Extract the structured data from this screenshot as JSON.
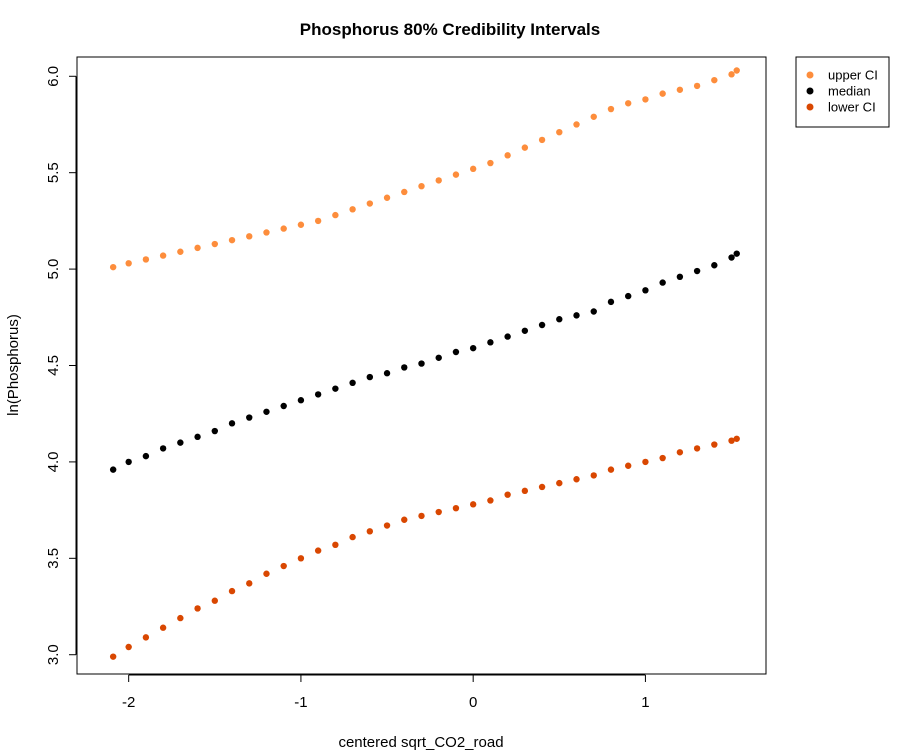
{
  "chart_data": {
    "type": "scatter",
    "title": "Phosphorus 80% Credibility Intervals",
    "xlabel": "centered sqrt_CO2_road",
    "ylabel": "ln(Phosphorus)",
    "xlim": [
      -2.3,
      1.7
    ],
    "ylim": [
      2.9,
      6.1
    ],
    "x_ticks": [
      -2,
      -1,
      0,
      1
    ],
    "y_ticks": [
      3.0,
      3.5,
      4.0,
      4.5,
      5.0,
      5.5,
      6.0
    ],
    "x_tick_labels": [
      "-2",
      "-1",
      "0",
      "1"
    ],
    "y_tick_labels": [
      "3.0",
      "3.5",
      "4.0",
      "4.5",
      "5.0",
      "5.5",
      "6.0"
    ],
    "grid": false,
    "legend_position": "top-right",
    "series": [
      {
        "name": "upper CI",
        "color": "#fd8d3c",
        "x": [
          -2.09,
          -2.0,
          -1.9,
          -1.8,
          -1.7,
          -1.6,
          -1.5,
          -1.4,
          -1.3,
          -1.2,
          -1.1,
          -1.0,
          -0.9,
          -0.8,
          -0.7,
          -0.6,
          -0.5,
          -0.4,
          -0.3,
          -0.2,
          -0.1,
          0.0,
          0.1,
          0.2,
          0.3,
          0.4,
          0.5,
          0.6,
          0.7,
          0.8,
          0.9,
          1.0,
          1.1,
          1.2,
          1.3,
          1.4,
          1.5,
          1.53
        ],
        "y": [
          5.01,
          5.03,
          5.05,
          5.07,
          5.09,
          5.11,
          5.13,
          5.15,
          5.17,
          5.19,
          5.21,
          5.23,
          5.25,
          5.28,
          5.31,
          5.34,
          5.37,
          5.4,
          5.43,
          5.46,
          5.49,
          5.52,
          5.55,
          5.59,
          5.63,
          5.67,
          5.71,
          5.75,
          5.79,
          5.83,
          5.86,
          5.88,
          5.91,
          5.93,
          5.95,
          5.98,
          6.01,
          6.03
        ]
      },
      {
        "name": "median",
        "color": "#000000",
        "x": [
          -2.09,
          -2.0,
          -1.9,
          -1.8,
          -1.7,
          -1.6,
          -1.5,
          -1.4,
          -1.3,
          -1.2,
          -1.1,
          -1.0,
          -0.9,
          -0.8,
          -0.7,
          -0.6,
          -0.5,
          -0.4,
          -0.3,
          -0.2,
          -0.1,
          0.0,
          0.1,
          0.2,
          0.3,
          0.4,
          0.5,
          0.6,
          0.7,
          0.8,
          0.9,
          1.0,
          1.1,
          1.2,
          1.3,
          1.4,
          1.5,
          1.53
        ],
        "y": [
          3.96,
          4.0,
          4.03,
          4.07,
          4.1,
          4.13,
          4.16,
          4.2,
          4.23,
          4.26,
          4.29,
          4.32,
          4.35,
          4.38,
          4.41,
          4.44,
          4.46,
          4.49,
          4.51,
          4.54,
          4.57,
          4.59,
          4.62,
          4.65,
          4.68,
          4.71,
          4.74,
          4.76,
          4.78,
          4.83,
          4.86,
          4.89,
          4.93,
          4.96,
          4.99,
          5.02,
          5.06,
          5.08
        ]
      },
      {
        "name": "lower CI",
        "color": "#d94701",
        "x": [
          -2.09,
          -2.0,
          -1.9,
          -1.8,
          -1.7,
          -1.6,
          -1.5,
          -1.4,
          -1.3,
          -1.2,
          -1.1,
          -1.0,
          -0.9,
          -0.8,
          -0.7,
          -0.6,
          -0.5,
          -0.4,
          -0.3,
          -0.2,
          -0.1,
          0.0,
          0.1,
          0.2,
          0.3,
          0.4,
          0.5,
          0.6,
          0.7,
          0.8,
          0.9,
          1.0,
          1.1,
          1.2,
          1.3,
          1.4,
          1.5,
          1.53
        ],
        "y": [
          2.99,
          3.04,
          3.09,
          3.14,
          3.19,
          3.24,
          3.28,
          3.33,
          3.37,
          3.42,
          3.46,
          3.5,
          3.54,
          3.57,
          3.61,
          3.64,
          3.67,
          3.7,
          3.72,
          3.74,
          3.76,
          3.78,
          3.8,
          3.83,
          3.85,
          3.87,
          3.89,
          3.91,
          3.93,
          3.96,
          3.98,
          4.0,
          4.02,
          4.05,
          4.07,
          4.09,
          4.11,
          4.12
        ]
      }
    ]
  }
}
